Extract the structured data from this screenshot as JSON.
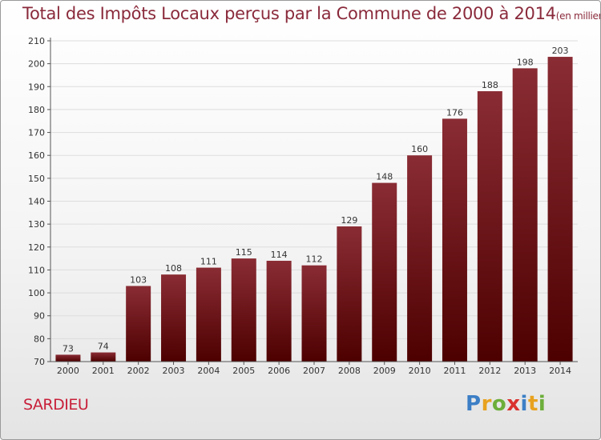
{
  "header": {
    "title": "Total des Impôts Locaux perçus par la Commune de 2000 à 2014",
    "unit": "(en milliers d'€)"
  },
  "footer": {
    "commune": "SARDIEU",
    "logo": "Proxiti"
  },
  "colors": {
    "bar_top": "#8a2c34",
    "bar_bottom": "#4d0000",
    "grid": "#dddddd",
    "title": "#8a2a3b",
    "commune": "#c8203a"
  },
  "chart_data": {
    "type": "bar",
    "title": "Total des Impôts Locaux perçus par la Commune de 2000 à 2014",
    "categories": [
      "2000",
      "2001",
      "2002",
      "2003",
      "2004",
      "2005",
      "2006",
      "2007",
      "2008",
      "2009",
      "2010",
      "2011",
      "2012",
      "2013",
      "2014"
    ],
    "values": [
      73,
      74,
      103,
      108,
      111,
      115,
      114,
      112,
      129,
      148,
      160,
      176,
      188,
      198,
      203
    ],
    "ylim": [
      70,
      210
    ],
    "yticks": [
      70,
      80,
      90,
      100,
      110,
      120,
      130,
      140,
      150,
      160,
      170,
      180,
      190,
      200,
      210
    ],
    "xlabel": "",
    "ylabel": "",
    "grid": true
  }
}
